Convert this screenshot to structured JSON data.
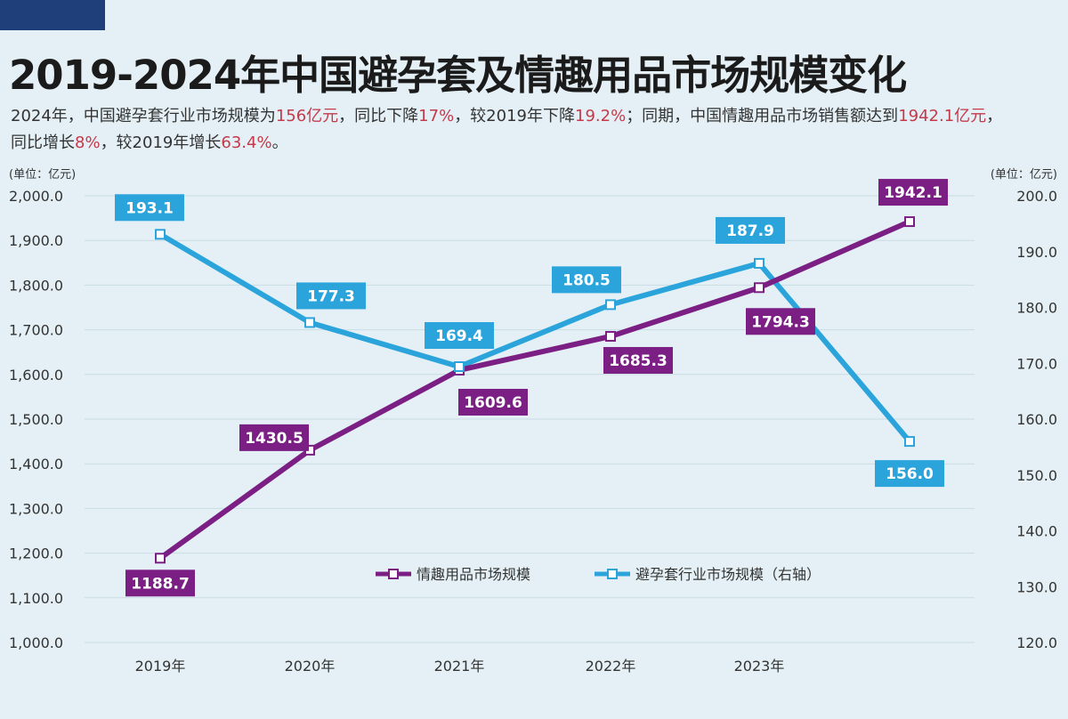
{
  "title": "2019-2024年中国避孕套及情趣用品市场规模变化",
  "subtitle": {
    "parts": [
      {
        "text": "2024年，中国避孕套行业市场规模为",
        "hl": false
      },
      {
        "text": "156亿元",
        "hl": true
      },
      {
        "text": "，同比下降",
        "hl": false
      },
      {
        "text": "17%",
        "hl": true
      },
      {
        "text": "，较2019年下降",
        "hl": false
      },
      {
        "text": "19.2%",
        "hl": true
      },
      {
        "text": "；同期，中国情趣用品市场销售额达到",
        "hl": false
      },
      {
        "text": "1942.1亿元",
        "hl": true
      },
      {
        "text": "，同比增长",
        "hl": false
      },
      {
        "text": "8%",
        "hl": true
      },
      {
        "text": "，较2019年增长",
        "hl": false
      },
      {
        "text": "63.4%",
        "hl": true
      },
      {
        "text": "。",
        "hl": false
      }
    ]
  },
  "colors": {
    "purple": "#7b1f84",
    "blue": "#2ba4dc",
    "highlight": "#c43a4a"
  },
  "chart_data": {
    "type": "line",
    "categories": [
      "2019年",
      "2020年",
      "2021年",
      "2022年",
      "2023年",
      ""
    ],
    "left_unit": "(单位：亿元)",
    "right_unit": "(单位：亿元)",
    "ylim_left": [
      1000,
      2000
    ],
    "yticks_left": [
      "1,000.0",
      "1,100.0",
      "1,200.0",
      "1,300.0",
      "1,400.0",
      "1,500.0",
      "1,600.0",
      "1,700.0",
      "1,800.0",
      "1,900.0",
      "2,000.0"
    ],
    "ylim_right": [
      120,
      200
    ],
    "yticks_right": [
      "120.0",
      "130.0",
      "140.0",
      "150.0",
      "160.0",
      "170.0",
      "180.0",
      "190.0",
      "200.0"
    ],
    "grid": true,
    "legend_position": "bottom-right",
    "series": [
      {
        "name": "情趣用品市场规模",
        "axis": "left",
        "values": [
          1188.7,
          1430.5,
          1609.6,
          1685.3,
          1794.3,
          1942.1
        ],
        "labels": [
          "1188.7",
          "1430.5",
          "1609.6",
          "1685.3",
          "1794.3",
          "1942.1"
        ]
      },
      {
        "name": "避孕套行业市场规模（右轴）",
        "axis": "right",
        "values": [
          193.1,
          177.3,
          169.4,
          180.5,
          187.9,
          156.0
        ],
        "labels": [
          "193.1",
          "177.3",
          "169.4",
          "180.5",
          "187.9",
          "156.0"
        ]
      }
    ]
  }
}
